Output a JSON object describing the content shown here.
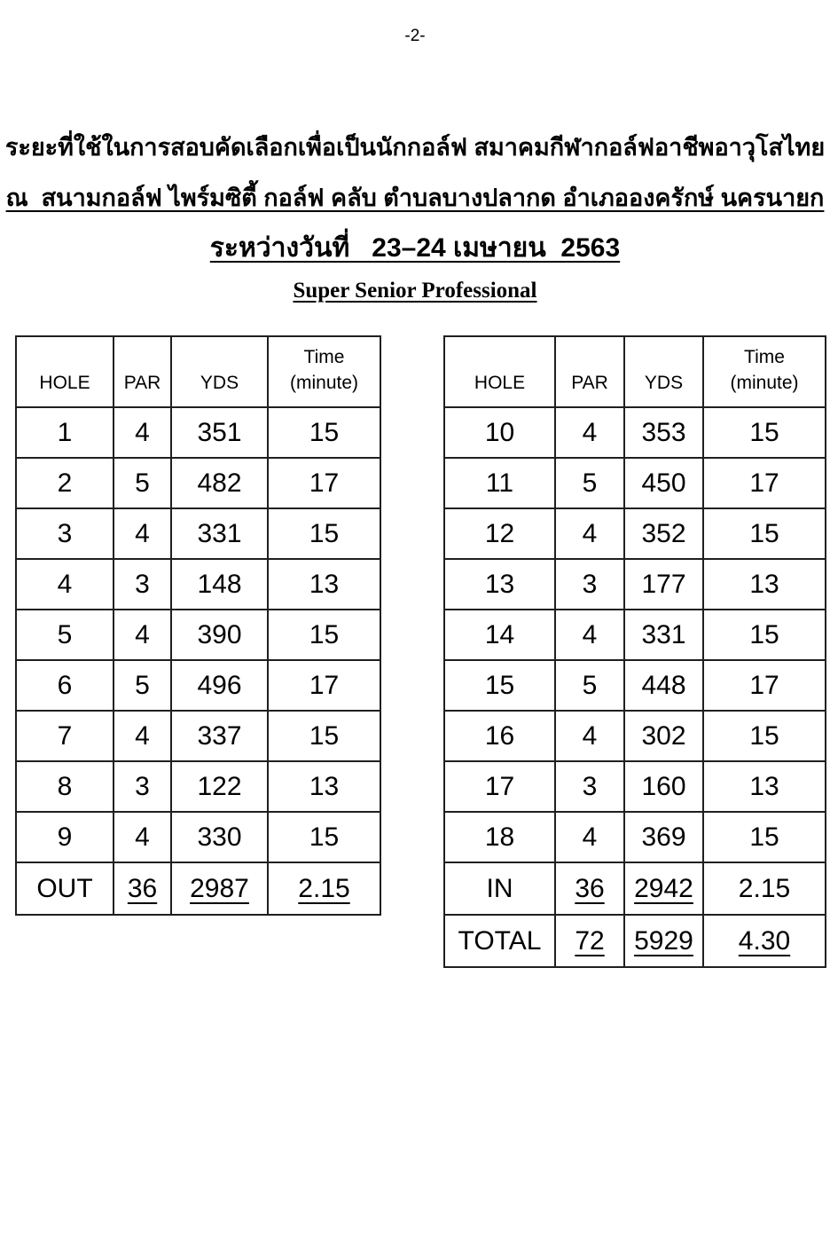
{
  "page": {
    "number_label": "-2-"
  },
  "headings": {
    "line1": "ระยะที่ใช้ในการสอบคัดเลือกเพื่อเป็นนักกอล์ฟ สมาคมกีฬากอล์ฟอาชีพอาวุโสไทย",
    "line2": "ณ  สนามกอล์ฟ ไพร์มซิตี้ กอล์ฟ คลับ ตำบลบางปลากด อำเภอองครักษ์ นครนายก",
    "line3": "ระหว่างวันที่   23–24 เมษายน  2563",
    "line4": "Super Senior Professional"
  },
  "tables": {
    "front_nine": {
      "header": {
        "hole": "HOLE",
        "par": "PAR",
        "yds": "YDS",
        "time_line1": "Time",
        "time_line2": "(minute)"
      },
      "rows": [
        [
          "1",
          "4",
          "351",
          "15"
        ],
        [
          "2",
          "5",
          "482",
          "17"
        ],
        [
          "3",
          "4",
          "331",
          "15"
        ],
        [
          "4",
          "3",
          "148",
          "13"
        ],
        [
          "5",
          "4",
          "390",
          "15"
        ],
        [
          "6",
          "5",
          "496",
          "17"
        ],
        [
          "7",
          "4",
          "337",
          "15"
        ],
        [
          "8",
          "3",
          "122",
          "13"
        ],
        [
          "9",
          "4",
          "330",
          "15"
        ]
      ],
      "summary_rows": [
        {
          "cells": [
            "OUT",
            "36",
            "2987",
            "2.15"
          ],
          "underline": [
            false,
            true,
            true,
            true
          ]
        }
      ]
    },
    "back_nine": {
      "header": {
        "hole": "HOLE",
        "par": "PAR",
        "yds": "YDS",
        "time_line1": "Time",
        "time_line2": "(minute)"
      },
      "rows": [
        [
          "10",
          "4",
          "353",
          "15"
        ],
        [
          "11",
          "5",
          "450",
          "17"
        ],
        [
          "12",
          "4",
          "352",
          "15"
        ],
        [
          "13",
          "3",
          "177",
          "13"
        ],
        [
          "14",
          "4",
          "331",
          "15"
        ],
        [
          "15",
          "5",
          "448",
          "17"
        ],
        [
          "16",
          "4",
          "302",
          "15"
        ],
        [
          "17",
          "3",
          "160",
          "13"
        ],
        [
          "18",
          "4",
          "369",
          "15"
        ]
      ],
      "summary_rows": [
        {
          "cells": [
            "IN",
            "36",
            "2942",
            "2.15"
          ],
          "underline": [
            false,
            true,
            true,
            false
          ]
        },
        {
          "cells": [
            "TOTAL",
            "72",
            "5929",
            "4.30"
          ],
          "underline": [
            false,
            true,
            true,
            true
          ]
        }
      ]
    }
  }
}
